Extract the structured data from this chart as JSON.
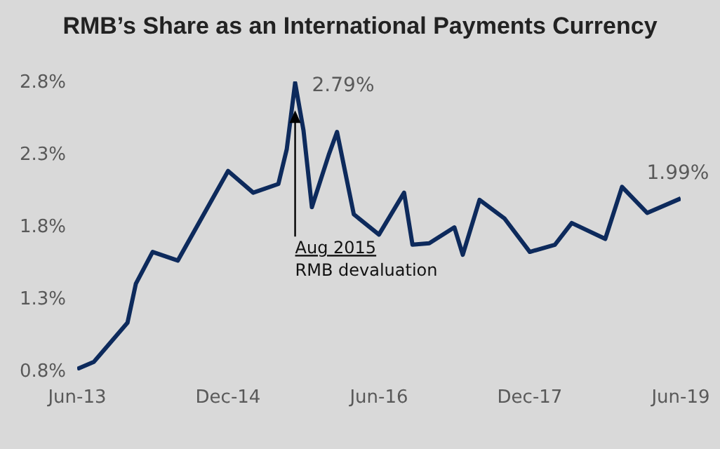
{
  "chart_data": {
    "type": "line",
    "title": "RMB’s Share as an International Payments Currency",
    "x": [
      "2013-06",
      "2013-08",
      "2013-12",
      "2014-01",
      "2014-03",
      "2014-06",
      "2014-12",
      "2015-03",
      "2015-06",
      "2015-07",
      "2015-08",
      "2015-09",
      "2015-10",
      "2015-12",
      "2016-01",
      "2016-03",
      "2016-06",
      "2016-09",
      "2016-10",
      "2016-12",
      "2017-03",
      "2017-04",
      "2017-06",
      "2017-09",
      "2017-12",
      "2018-03",
      "2018-05",
      "2018-09",
      "2018-11",
      "2019-02",
      "2019-06"
    ],
    "series": [
      {
        "color": "#0d2a5c",
        "values": [
          0.81,
          0.86,
          1.13,
          1.4,
          1.62,
          1.56,
          2.18,
          2.03,
          2.09,
          2.33,
          2.79,
          2.46,
          1.93,
          2.29,
          2.45,
          1.88,
          1.74,
          2.03,
          1.67,
          1.68,
          1.79,
          1.6,
          1.98,
          1.85,
          1.62,
          1.67,
          1.82,
          1.71,
          2.07,
          1.89,
          1.99
        ],
        "value_labels": [
          null,
          null,
          null,
          null,
          null,
          null,
          null,
          null,
          null,
          null,
          "2.79%",
          null,
          null,
          null,
          null,
          null,
          null,
          null,
          null,
          null,
          null,
          null,
          null,
          null,
          null,
          null,
          null,
          null,
          null,
          null,
          "1.99%"
        ]
      }
    ],
    "xlim": [
      "2013-06",
      "2019-06"
    ],
    "xticks": [
      {
        "value": "2013-06",
        "label": "Jun-13"
      },
      {
        "value": "2014-12",
        "label": "Dec-14"
      },
      {
        "value": "2016-06",
        "label": "Jun-16"
      },
      {
        "value": "2017-12",
        "label": "Dec-17"
      },
      {
        "value": "2019-06",
        "label": "Jun-19"
      }
    ],
    "ylim": [
      0.8,
      2.8
    ],
    "yticks": [
      {
        "value": 0.8,
        "label": "0.8%"
      },
      {
        "value": 1.3,
        "label": "1.3%"
      },
      {
        "value": 1.8,
        "label": "1.8%"
      },
      {
        "value": 2.3,
        "label": "2.3%"
      },
      {
        "value": 2.8,
        "label": "2.8%"
      }
    ],
    "annotations": [
      {
        "text": "Aug 2015\nRMB devaluation",
        "x": "2015-08",
        "y": 2.6
      }
    ],
    "grid": false,
    "legend": false,
    "marker": "none",
    "line_style": "solid"
  }
}
